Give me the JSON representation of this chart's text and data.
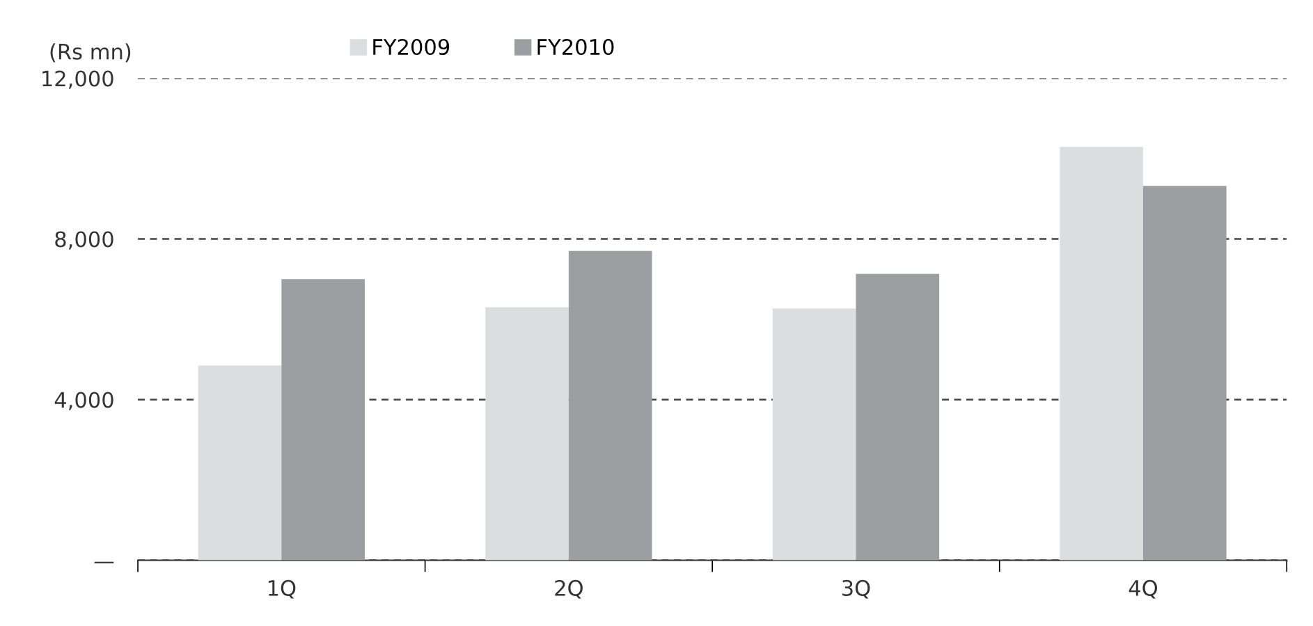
{
  "chart_data": {
    "type": "bar",
    "ylabel": "(Rs mn)",
    "categories": [
      "1Q",
      "2Q",
      "3Q",
      "4Q"
    ],
    "series": [
      {
        "name": "FY2009",
        "color": "#dcdddf",
        "values": [
          4850,
          6300,
          6270,
          10290
        ]
      },
      {
        "name": "FY2010",
        "color": "#9d9ea2",
        "values": [
          7000,
          7700,
          7130,
          9320
        ]
      }
    ],
    "ylim": [
      0,
      12000
    ],
    "yticks": [
      {
        "value": 0,
        "label": "—"
      },
      {
        "value": 4000,
        "label": "4,000"
      },
      {
        "value": 8000,
        "label": "8,000"
      },
      {
        "value": 12000,
        "label": "12,000"
      }
    ],
    "grid": "y",
    "legend": "top"
  }
}
